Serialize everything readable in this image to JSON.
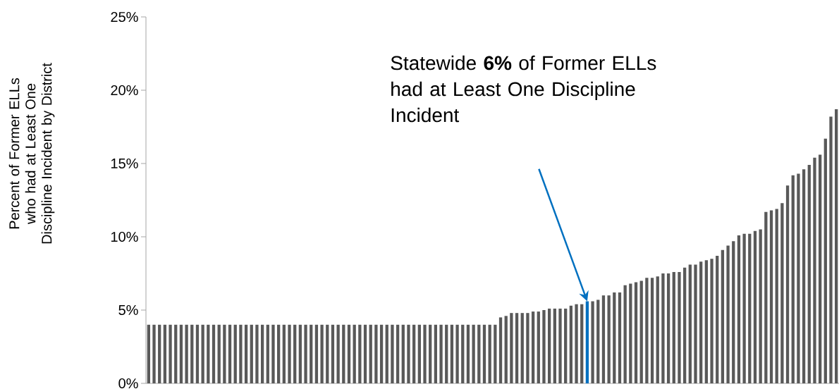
{
  "chart_data": {
    "type": "bar",
    "ylabel": "Percent of Former ELLs who had at Least One Discipline Incident by District",
    "categories": [
      null,
      null,
      null,
      null,
      null,
      null,
      null,
      null,
      null,
      null,
      null,
      null,
      null,
      null,
      null,
      null,
      null,
      null,
      null,
      null,
      null,
      null,
      null,
      null,
      null,
      null,
      null,
      null,
      null,
      null,
      null,
      null,
      null,
      null,
      null,
      null,
      null,
      null,
      null,
      null,
      null,
      null,
      null,
      null,
      null,
      null,
      null,
      null,
      null,
      null,
      null,
      null,
      null,
      null,
      null,
      null,
      null,
      null,
      null,
      null,
      null,
      null,
      null,
      null,
      null,
      null,
      null,
      null,
      null,
      null,
      null,
      null,
      null,
      null,
      null,
      null,
      null,
      null,
      null,
      null,
      null,
      null,
      null,
      null,
      null,
      null,
      null,
      null,
      null,
      null,
      null,
      null,
      null,
      null,
      null,
      null,
      null,
      null,
      null,
      null,
      null,
      null,
      null,
      null,
      null,
      null,
      null,
      null,
      null,
      null,
      null,
      null,
      null,
      null,
      null,
      null,
      null,
      null,
      null,
      null,
      null,
      null,
      null,
      null,
      null,
      null,
      null,
      null
    ],
    "values": [
      4,
      4,
      4,
      4,
      4,
      4,
      4,
      4,
      4,
      4,
      4,
      4,
      4,
      4,
      4,
      4,
      4,
      4,
      4,
      4,
      4,
      4,
      4,
      4,
      4,
      4,
      4,
      4,
      4,
      4,
      4,
      4,
      4,
      4,
      4,
      4,
      4,
      4,
      4,
      4,
      4,
      4,
      4,
      4,
      4,
      4,
      4,
      4,
      4,
      4,
      4,
      4,
      4,
      4,
      4,
      4,
      4,
      4,
      4,
      4,
      4,
      4,
      4,
      4,
      4,
      4.5,
      4.6,
      4.8,
      4.8,
      4.8,
      4.8,
      4.9,
      4.9,
      5.0,
      5.1,
      5.1,
      5.1,
      5.1,
      5.3,
      5.4,
      5.4,
      5.6,
      5.6,
      5.7,
      6.0,
      6.0,
      6.2,
      6.2,
      6.7,
      6.8,
      6.9,
      7.0,
      7.2,
      7.2,
      7.3,
      7.5,
      7.5,
      7.6,
      7.6,
      7.9,
      8.1,
      8.1,
      8.3,
      8.4,
      8.5,
      8.7,
      9.1,
      9.4,
      9.7,
      10.1,
      10.2,
      10.2,
      10.4,
      10.5,
      11.7,
      11.8,
      11.9,
      12.3,
      13.5,
      14.2,
      14.3,
      14.6,
      14.9,
      15.4,
      15.6,
      16.7,
      18.2,
      18.7
    ],
    "colors": [
      "#595959",
      "#595959",
      "#595959",
      "#595959",
      "#595959",
      "#595959",
      "#595959",
      "#595959",
      "#595959",
      "#595959",
      "#595959",
      "#595959",
      "#595959",
      "#595959",
      "#595959",
      "#595959",
      "#595959",
      "#595959",
      "#595959",
      "#595959",
      "#595959",
      "#595959",
      "#595959",
      "#595959",
      "#595959",
      "#595959",
      "#595959",
      "#595959",
      "#595959",
      "#595959",
      "#595959",
      "#595959",
      "#595959",
      "#595959",
      "#595959",
      "#595959",
      "#595959",
      "#595959",
      "#595959",
      "#595959",
      "#595959",
      "#595959",
      "#595959",
      "#595959",
      "#595959",
      "#595959",
      "#595959",
      "#595959",
      "#595959",
      "#595959",
      "#595959",
      "#595959",
      "#595959",
      "#595959",
      "#595959",
      "#595959",
      "#595959",
      "#595959",
      "#595959",
      "#595959",
      "#595959",
      "#595959",
      "#595959",
      "#595959",
      "#595959",
      "#595959",
      "#595959",
      "#595959",
      "#595959",
      "#595959",
      "#595959",
      "#595959",
      "#595959",
      "#595959",
      "#595959",
      "#595959",
      "#595959",
      "#595959",
      "#595959",
      "#595959",
      "#595959",
      "#0070c0",
      "#595959",
      "#595959",
      "#595959",
      "#595959",
      "#595959",
      "#595959",
      "#595959",
      "#595959",
      "#595959",
      "#595959",
      "#595959",
      "#595959",
      "#595959",
      "#595959",
      "#595959",
      "#595959",
      "#595959",
      "#595959",
      "#595959",
      "#595959",
      "#595959",
      "#595959",
      "#595959",
      "#595959",
      "#595959",
      "#595959",
      "#595959",
      "#595959",
      "#595959",
      "#595959",
      "#595959",
      "#595959",
      "#595959",
      "#595959",
      "#595959",
      "#595959",
      "#595959",
      "#595959",
      "#595959",
      "#595959",
      "#595959",
      "#595959",
      "#595959",
      "#595959",
      "#595959",
      "#595959"
    ],
    "ylim": [
      0,
      25
    ],
    "yticks": [
      {
        "value": 0,
        "label": "0%"
      },
      {
        "value": 5,
        "label": "5%"
      },
      {
        "value": 10,
        "label": "10%"
      },
      {
        "value": 15,
        "label": "15%"
      },
      {
        "value": 20,
        "label": "20%"
      },
      {
        "value": 25,
        "label": "25%"
      }
    ],
    "annotations": [
      "Statewide **6%** of Former ELLs had at Least One Discipline Incident"
    ]
  }
}
